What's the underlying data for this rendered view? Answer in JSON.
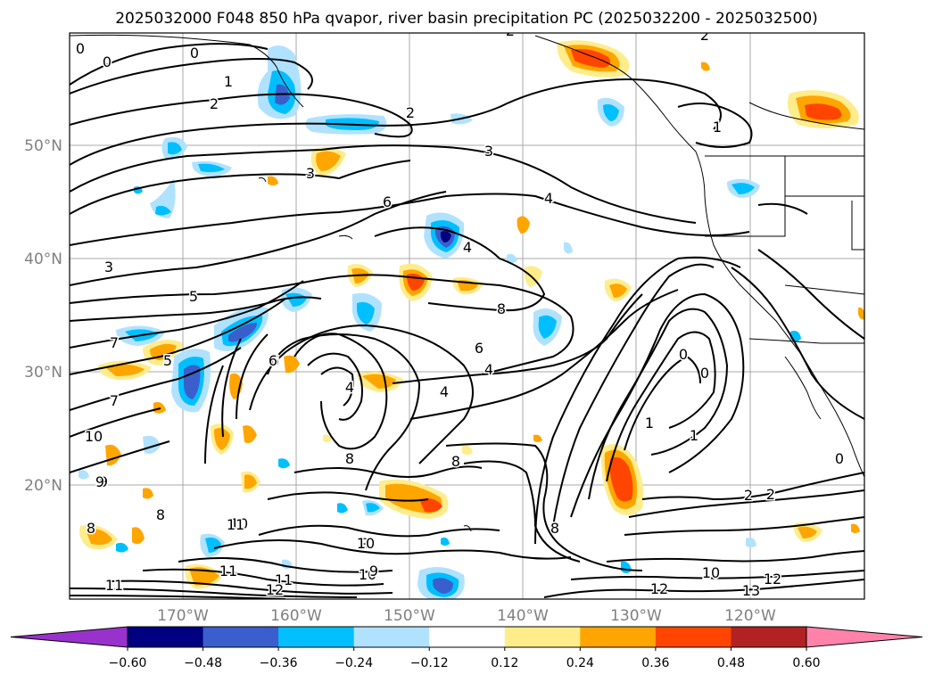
{
  "title": "2025032000 F048 850 hPa qvapor, river basin precipitation PC (2025032200 - 2025032500)",
  "map": {
    "lat_ticks": [
      "50°N",
      "40°N",
      "30°N",
      "20°N"
    ],
    "lon_ticks": [
      "170°W",
      "160°W",
      "150°W",
      "140°W",
      "130°W",
      "120°W"
    ],
    "gridlines": true,
    "contour_labels": [
      "0",
      "0",
      "0",
      "1",
      "2",
      "2",
      "2",
      "2",
      "3",
      "3",
      "3",
      "4",
      "4",
      "4",
      "5",
      "6",
      "6",
      "6",
      "7",
      "7",
      "8",
      "8",
      "8",
      "8",
      "8",
      "9",
      "9",
      "10",
      "10",
      "10",
      "11",
      "11",
      "11",
      "12",
      "12",
      "13",
      "12",
      "10",
      "9",
      "0",
      "0",
      "1",
      "2",
      "1",
      "0",
      "1",
      "2",
      "4",
      "4",
      "5",
      "6",
      "7",
      "8",
      "9",
      "10",
      "11"
    ]
  },
  "colorbar": {
    "tick_labels": [
      "−0.60",
      "−0.48",
      "−0.36",
      "−0.24",
      "−0.12",
      "0.12",
      "0.24",
      "0.36",
      "0.48",
      "0.60"
    ],
    "colors": [
      "#9932cc",
      "#000080",
      "#3a5fcd",
      "#00bfff",
      "#b0e2ff",
      "#ffffff",
      "#ffec8b",
      "#ffa500",
      "#ff4500",
      "#b22222",
      "#ff82ab"
    ],
    "extend": "both"
  }
}
